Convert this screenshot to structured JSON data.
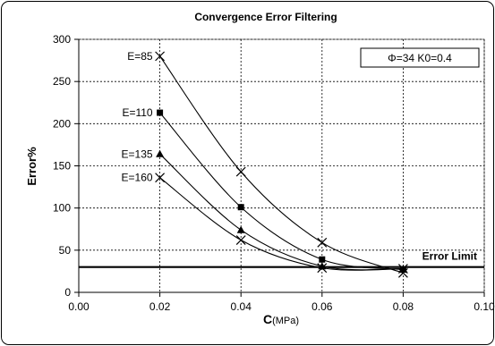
{
  "chart_data": {
    "type": "line",
    "title": "Convergence Error Filtering",
    "xlabel_main": "C",
    "xlabel_unit": "(MPa)",
    "ylabel": "Error%",
    "xlim": [
      0,
      0.1
    ],
    "ylim": [
      0,
      300
    ],
    "x_ticks": [
      "0.00",
      "0.02",
      "0.04",
      "0.06",
      "0.08",
      "0.10"
    ],
    "y_ticks": [
      "0",
      "50",
      "100",
      "150",
      "200",
      "250",
      "300"
    ],
    "grid": true,
    "legend_text": "Φ=34  K0=0.4",
    "legend_placement": "top-right",
    "error_limit": {
      "label": "Error Limit",
      "value": 30,
      "color": "#000000"
    },
    "series": [
      {
        "name": "E=85",
        "marker": "x",
        "x": [
          0.02,
          0.04,
          0.06,
          0.08
        ],
        "values": [
          280,
          143,
          59,
          23
        ]
      },
      {
        "name": "E=110",
        "marker": "square",
        "x": [
          0.02,
          0.04,
          0.06,
          0.08
        ],
        "values": [
          213,
          101,
          39,
          27
        ]
      },
      {
        "name": "E=135",
        "marker": "triangle",
        "x": [
          0.02,
          0.04,
          0.06,
          0.08
        ],
        "values": [
          164,
          74,
          31,
          28
        ]
      },
      {
        "name": "E=160",
        "marker": "x",
        "x": [
          0.02,
          0.04,
          0.06,
          0.08
        ],
        "values": [
          136,
          62,
          29,
          28
        ]
      }
    ]
  }
}
